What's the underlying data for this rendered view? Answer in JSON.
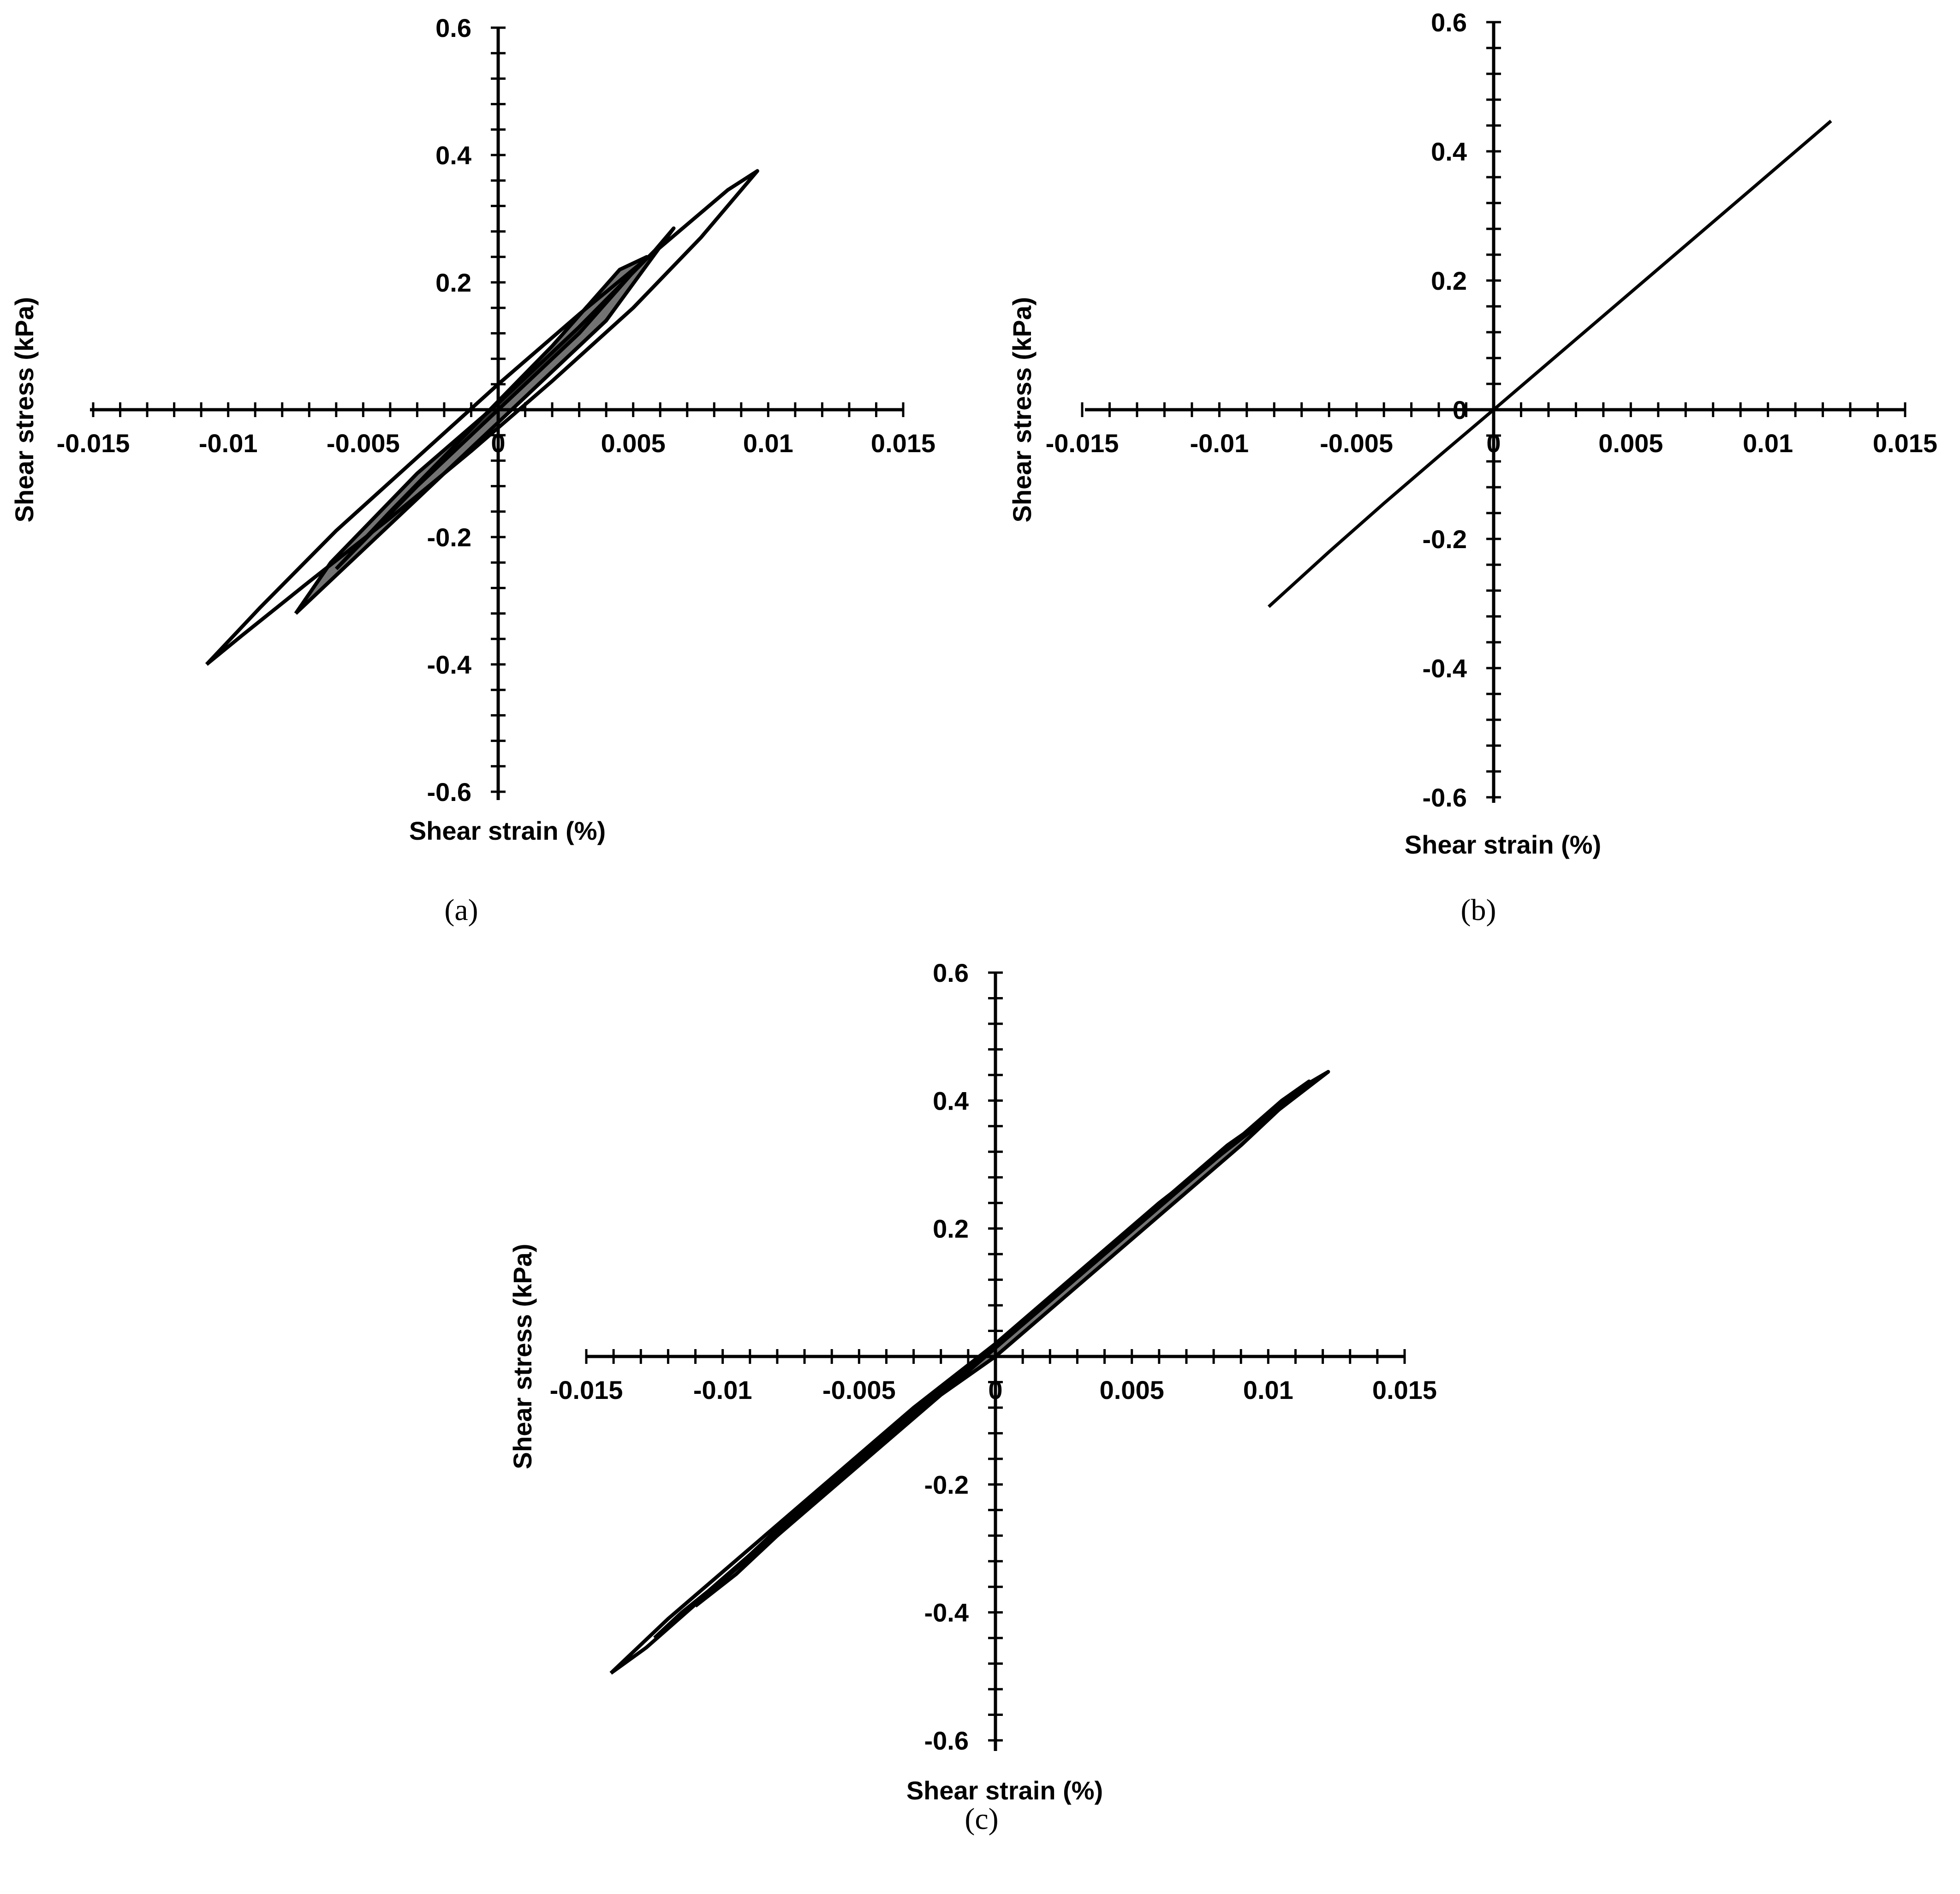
{
  "figure": {
    "panels": [
      {
        "id": "a",
        "caption": "(a)"
      },
      {
        "id": "b",
        "caption": "(b)"
      },
      {
        "id": "c",
        "caption": "(c)"
      }
    ]
  },
  "chart_data": [
    {
      "panel": "a",
      "type": "line",
      "description_visible": "hysteresis loops",
      "xlabel": "Shear strain (%)",
      "ylabel": "Shear stress (kPa)",
      "xlim": [
        -0.015,
        0.015
      ],
      "ylim": [
        -0.6,
        0.6
      ],
      "x_ticks": [
        -0.015,
        -0.01,
        -0.005,
        0,
        0.005,
        0.01,
        0.015
      ],
      "x_tick_labels": [
        "-0.015",
        "-0.01",
        "-0.005",
        "0",
        "0.005",
        "0.01",
        "0.015"
      ],
      "y_ticks": [
        -0.6,
        -0.4,
        -0.2,
        0,
        0.2,
        0.4,
        0.6
      ],
      "y_tick_labels": [
        "-0.6",
        "-0.4",
        "-0.2",
        "",
        "0.2",
        "0.4",
        "0.6"
      ],
      "grid": false,
      "series": [
        {
          "x": [
            -0.0108,
            -0.0095,
            -0.007,
            -0.004,
            -0.001,
            0.002,
            0.005,
            0.0075,
            0.0096,
            0.0085,
            0.006,
            0.003,
            0.0,
            -0.003,
            -0.006,
            -0.0088,
            -0.0108
          ],
          "y": [
            -0.4,
            -0.355,
            -0.27,
            -0.17,
            -0.065,
            0.045,
            0.16,
            0.27,
            0.375,
            0.345,
            0.255,
            0.15,
            0.04,
            -0.075,
            -0.19,
            -0.31,
            -0.4
          ]
        },
        {
          "x": [
            -0.0075,
            -0.005,
            -0.002,
            0.001,
            0.004,
            0.0065,
            0.0058,
            0.003,
            0.0,
            -0.003,
            -0.0062,
            -0.0075
          ],
          "y": [
            -0.32,
            -0.22,
            -0.1,
            0.02,
            0.14,
            0.285,
            0.25,
            0.13,
            0.01,
            -0.1,
            -0.24,
            -0.32
          ]
        },
        {
          "x": [
            -0.006,
            -0.003,
            0.0,
            0.003,
            0.0055,
            0.0045,
            0.002,
            -0.001,
            -0.004,
            -0.006
          ],
          "y": [
            -0.25,
            -0.12,
            0.0,
            0.12,
            0.24,
            0.22,
            0.1,
            -0.03,
            -0.16,
            -0.25
          ]
        }
      ]
    },
    {
      "panel": "b",
      "type": "line",
      "xlabel": "Shear strain (%)",
      "ylabel": "Shear stress (kPa)",
      "xlim": [
        -0.015,
        0.015
      ],
      "ylim": [
        -0.6,
        0.6
      ],
      "x_ticks": [
        -0.015,
        -0.01,
        -0.005,
        0,
        0.005,
        0.01,
        0.015
      ],
      "x_tick_labels": [
        "-0.015",
        "-0.01",
        "-0.005",
        "0",
        "0.005",
        "0.01",
        "0.015"
      ],
      "y_ticks": [
        -0.6,
        -0.4,
        -0.2,
        0,
        0.2,
        0.4,
        0.6
      ],
      "y_tick_labels": [
        "-0.6",
        "-0.4",
        "-0.2",
        "0",
        "0.2",
        "0.4",
        "0.6"
      ],
      "grid": false,
      "series": [
        {
          "x": [
            -0.0082,
            -0.006,
            -0.004,
            -0.002,
            0.0,
            0.003,
            0.006,
            0.009,
            0.0123
          ],
          "y": [
            -0.305,
            -0.22,
            -0.145,
            -0.072,
            0.0,
            0.109,
            0.218,
            0.327,
            0.447
          ]
        }
      ]
    },
    {
      "panel": "c",
      "type": "line",
      "xlabel": "Shear strain (%)",
      "ylabel": "Shear stress (kPa)",
      "xlim": [
        -0.015,
        0.015
      ],
      "ylim": [
        -0.6,
        0.6
      ],
      "x_ticks": [
        -0.015,
        -0.01,
        -0.005,
        0,
        0.005,
        0.01,
        0.015
      ],
      "x_tick_labels": [
        "-0.015",
        "-0.01",
        "-0.005",
        "0",
        "0.005",
        "0.01",
        "0.015"
      ],
      "y_ticks": [
        -0.6,
        -0.4,
        -0.2,
        0,
        0.2,
        0.4,
        0.6
      ],
      "y_tick_labels": [
        "-0.6",
        "-0.4",
        "-0.2",
        "",
        "0.2",
        "0.4",
        "0.6"
      ],
      "grid": false,
      "series": [
        {
          "x": [
            -0.0141,
            -0.012,
            -0.009,
            -0.006,
            -0.003,
            0.0,
            0.003,
            0.006,
            0.009,
            0.0122,
            0.0112,
            0.008,
            0.005,
            0.002,
            -0.001,
            -0.004,
            -0.007,
            -0.01,
            -0.0128,
            -0.0141
          ],
          "y": [
            -0.495,
            -0.41,
            -0.3,
            -0.19,
            -0.08,
            0.02,
            0.13,
            0.24,
            0.34,
            0.445,
            0.42,
            0.31,
            0.2,
            0.09,
            -0.02,
            -0.13,
            -0.24,
            -0.35,
            -0.455,
            -0.495
          ]
        },
        {
          "x": [
            -0.0125,
            -0.009,
            -0.006,
            -0.003,
            0.0,
            0.003,
            0.006,
            0.009,
            0.0115,
            0.0105,
            0.007,
            0.004,
            0.001,
            -0.002,
            -0.005,
            -0.008,
            -0.0115,
            -0.0125
          ],
          "y": [
            -0.44,
            -0.31,
            -0.2,
            -0.09,
            0.0,
            0.11,
            0.22,
            0.33,
            0.43,
            0.4,
            0.27,
            0.16,
            0.05,
            -0.06,
            -0.17,
            -0.28,
            -0.4,
            -0.44
          ]
        },
        {
          "x": [
            -0.011,
            -0.008,
            -0.005,
            -0.002,
            0.001,
            0.004,
            0.007,
            0.0095,
            0.0085,
            0.0055,
            0.0025,
            -0.0005,
            -0.0035,
            -0.0065,
            -0.0095,
            -0.011
          ],
          "y": [
            -0.39,
            -0.27,
            -0.16,
            -0.05,
            0.05,
            0.16,
            0.27,
            0.36,
            0.33,
            0.22,
            0.11,
            0.0,
            -0.11,
            -0.22,
            -0.34,
            -0.39
          ]
        }
      ]
    }
  ]
}
